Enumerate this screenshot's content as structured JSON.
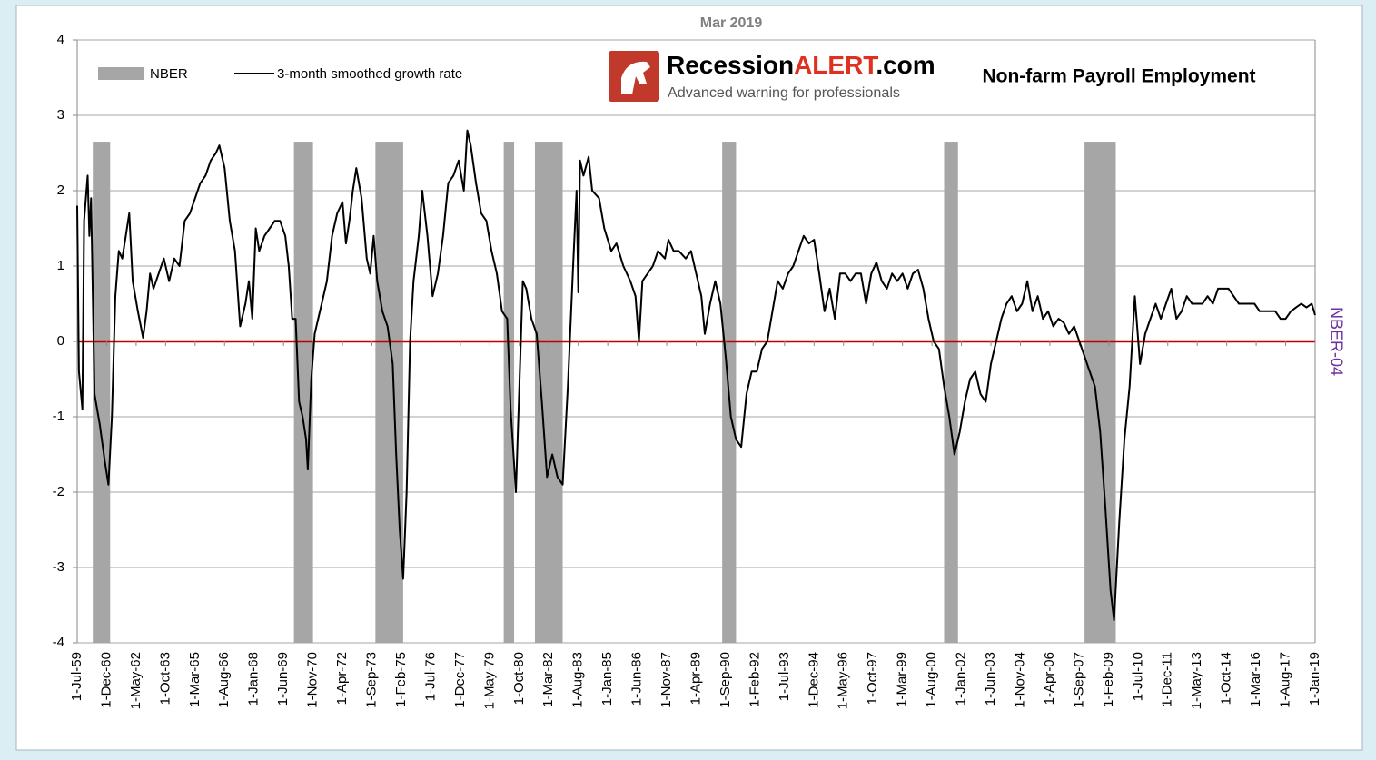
{
  "chart_data": {
    "type": "line",
    "title": "Mar 2019",
    "chart_label": "Non-farm Payroll Employment",
    "y2_label": "NBER-04",
    "logo": {
      "part1": "Recession",
      "part2": "ALERT",
      "part3": ".com",
      "tagline": "Advanced warning for professionals"
    },
    "xlim": [
      "1-Jul-59",
      "1-Jan-19"
    ],
    "xticks": [
      "1-Jul-59",
      "1-Dec-60",
      "1-May-62",
      "1-Oct-63",
      "1-Mar-65",
      "1-Aug-66",
      "1-Jan-68",
      "1-Jun-69",
      "1-Nov-70",
      "1-Apr-72",
      "1-Sep-73",
      "1-Feb-75",
      "1-Jul-76",
      "1-Dec-77",
      "1-May-79",
      "1-Oct-80",
      "1-Mar-82",
      "1-Aug-83",
      "1-Jan-85",
      "1-Jun-86",
      "1-Nov-87",
      "1-Apr-89",
      "1-Sep-90",
      "1-Feb-92",
      "1-Jul-93",
      "1-Dec-94",
      "1-May-96",
      "1-Oct-97",
      "1-Mar-99",
      "1-Aug-00",
      "1-Jan-02",
      "1-Jun-03",
      "1-Nov-04",
      "1-Apr-06",
      "1-Sep-07",
      "1-Feb-09",
      "1-Jul-10",
      "1-Dec-11",
      "1-May-13",
      "1-Oct-14",
      "1-Mar-16",
      "1-Aug-17",
      "1-Jan-19"
    ],
    "ylim": [
      -4,
      4
    ],
    "yticks": [
      -4,
      -3,
      -2,
      -1,
      0,
      1,
      2,
      3,
      4
    ],
    "grid": true,
    "zero_line": {
      "value": 0,
      "color": "#c00000"
    },
    "nber": {
      "name": "NBER",
      "color": "#a6a6a6",
      "value": 2.65,
      "periods": [
        [
          "1-Apr-60",
          "1-Feb-61"
        ],
        [
          "1-Dec-69",
          "1-Nov-70"
        ],
        [
          "1-Nov-73",
          "1-Mar-75"
        ],
        [
          "1-Jan-80",
          "1-Jul-80"
        ],
        [
          "1-Jul-81",
          "1-Nov-82"
        ],
        [
          "1-Jul-90",
          "1-Mar-91"
        ],
        [
          "1-Mar-01",
          "1-Nov-01"
        ],
        [
          "1-Dec-07",
          "1-Jun-09"
        ]
      ]
    },
    "x": [
      "1-Jul-59",
      "1-Aug-59",
      "1-Oct-59",
      "1-Nov-59",
      "1-Jan-60",
      "1-Feb-60",
      "1-Mar-60",
      "1-May-60",
      "1-Aug-60",
      "1-Nov-60",
      "1-Jan-61",
      "1-Mar-61",
      "1-May-61",
      "1-Jul-61",
      "1-Sep-61",
      "1-Nov-61",
      "1-Jan-62",
      "1-Mar-62",
      "1-Jun-62",
      "1-Sep-62",
      "1-Nov-62",
      "1-Jan-63",
      "1-Mar-63",
      "1-Jun-63",
      "1-Sep-63",
      "1-Dec-63",
      "1-Mar-64",
      "1-Jun-64",
      "1-Sep-64",
      "1-Dec-64",
      "1-Mar-65",
      "1-Jun-65",
      "1-Sep-65",
      "1-Dec-65",
      "1-Mar-66",
      "1-May-66",
      "1-Aug-66",
      "1-Nov-66",
      "1-Feb-67",
      "1-May-67",
      "1-Aug-67",
      "1-Oct-67",
      "1-Dec-67",
      "1-Feb-68",
      "1-Apr-68",
      "1-Jul-68",
      "1-Oct-68",
      "1-Jan-69",
      "1-Apr-69",
      "1-Jul-69",
      "1-Sep-69",
      "1-Nov-69",
      "1-Jan-70",
      "1-Mar-70",
      "1-May-70",
      "1-Jul-70",
      "1-Aug-70",
      "1-Oct-70",
      "1-Dec-70",
      "1-Feb-71",
      "1-Apr-71",
      "1-Jul-71",
      "1-Oct-71",
      "1-Jan-72",
      "1-Apr-72",
      "1-Jun-72",
      "1-Aug-72",
      "1-Oct-72",
      "1-Dec-72",
      "1-Mar-73",
      "1-Jun-73",
      "1-Aug-73",
      "1-Oct-73",
      "1-Dec-73",
      "1-Mar-74",
      "1-Jun-74",
      "1-Sep-74",
      "1-Nov-74",
      "1-Jan-75",
      "1-Mar-75",
      "1-May-75",
      "1-Jul-75",
      "1-Sep-75",
      "1-Dec-75",
      "1-Feb-76",
      "1-May-76",
      "1-Aug-76",
      "1-Nov-76",
      "1-Feb-77",
      "1-May-77",
      "1-Aug-77",
      "1-Nov-77",
      "1-Feb-78",
      "1-Apr-78",
      "1-Jun-78",
      "1-Sep-78",
      "1-Dec-78",
      "1-Mar-79",
      "1-Jun-79",
      "1-Sep-79",
      "1-Dec-79",
      "1-Mar-80",
      "1-May-80",
      "1-Aug-80",
      "1-Oct-80",
      "1-Dec-80",
      "1-Feb-81",
      "1-May-81",
      "1-Aug-81",
      "1-Nov-81",
      "1-Feb-82",
      "1-May-82",
      "1-Aug-82",
      "1-Nov-82",
      "1-Feb-83",
      "1-May-83",
      "1-Jul-83",
      "1-Aug-83",
      "1-Sep-83",
      "1-Nov-83",
      "1-Feb-84",
      "1-Apr-84",
      "1-Aug-84",
      "1-Nov-84",
      "1-Mar-85",
      "1-Jun-85",
      "1-Oct-85",
      "1-Feb-86",
      "1-May-86",
      "1-Jul-86",
      "1-Sep-86",
      "1-Dec-86",
      "1-Mar-87",
      "1-Jun-87",
      "1-Oct-87",
      "1-Dec-87",
      "1-Mar-88",
      "1-Jun-88",
      "1-Oct-88",
      "1-Jan-89",
      "1-Apr-89",
      "1-Jul-89",
      "1-Sep-89",
      "1-Dec-89",
      "1-Mar-90",
      "1-Jun-90",
      "1-Sep-90",
      "1-Dec-90",
      "1-Mar-91",
      "1-Jun-91",
      "1-Sep-91",
      "1-Dec-91",
      "1-Mar-92",
      "1-Jun-92",
      "1-Sep-92",
      "1-Dec-92",
      "1-Mar-93",
      "1-Jun-93",
      "1-Sep-93",
      "1-Dec-93",
      "1-Mar-94",
      "1-Jun-94",
      "1-Sep-94",
      "1-Dec-94",
      "1-Mar-95",
      "1-Jun-95",
      "1-Sep-95",
      "1-Dec-95",
      "1-Mar-96",
      "1-Jun-96",
      "1-Sep-96",
      "1-Dec-96",
      "1-Mar-97",
      "1-Jun-97",
      "1-Sep-97",
      "1-Dec-97",
      "1-Mar-98",
      "1-Jun-98",
      "1-Sep-98",
      "1-Dec-98",
      "1-Mar-99",
      "1-Jun-99",
      "1-Sep-99",
      "1-Dec-99",
      "1-Mar-00",
      "1-Jun-00",
      "1-Sep-00",
      "1-Dec-00",
      "1-Mar-01",
      "1-Jun-01",
      "1-Sep-01",
      "1-Dec-01",
      "1-Mar-02",
      "1-Jun-02",
      "1-Sep-02",
      "1-Dec-02",
      "1-Mar-03",
      "1-Jun-03",
      "1-Sep-03",
      "1-Dec-03",
      "1-Mar-04",
      "1-Jun-04",
      "1-Sep-04",
      "1-Dec-04",
      "1-Mar-05",
      "1-Jun-05",
      "1-Sep-05",
      "1-Dec-05",
      "1-Mar-06",
      "1-Jun-06",
      "1-Sep-06",
      "1-Dec-06",
      "1-Mar-07",
      "1-Jun-07",
      "1-Sep-07",
      "1-Dec-07",
      "1-Mar-08",
      "1-Jun-08",
      "1-Sep-08",
      "1-Dec-08",
      "1-Mar-09",
      "1-May-09",
      "1-Aug-09",
      "1-Nov-09",
      "1-Feb-10",
      "1-May-10",
      "1-Aug-10",
      "1-Nov-10",
      "1-Feb-11",
      "1-May-11",
      "1-Aug-11",
      "1-Nov-11",
      "1-Feb-12",
      "1-May-12",
      "1-Aug-12",
      "1-Nov-12",
      "1-Feb-13",
      "1-May-13",
      "1-Aug-13",
      "1-Nov-13",
      "1-Feb-14",
      "1-May-14",
      "1-Aug-14",
      "1-Nov-14",
      "1-Feb-15",
      "1-May-15",
      "1-Aug-15",
      "1-Nov-15",
      "1-Feb-16",
      "1-May-16",
      "1-Aug-16",
      "1-Nov-16",
      "1-Feb-17",
      "1-May-17",
      "1-Aug-17",
      "1-Nov-17",
      "1-Feb-18",
      "1-May-18",
      "1-Aug-18",
      "1-Nov-18",
      "1-Jan-19"
    ],
    "series": [
      {
        "name": "3-month smoothed growth rate",
        "color": "#000000",
        "values": [
          1.8,
          -0.4,
          -0.9,
          1.6,
          2.2,
          1.4,
          1.9,
          -0.7,
          -1.1,
          -1.6,
          -1.9,
          -1.0,
          0.6,
          1.2,
          1.1,
          1.4,
          1.7,
          0.8,
          0.4,
          0.05,
          0.4,
          0.9,
          0.7,
          0.9,
          1.1,
          0.8,
          1.1,
          1.0,
          1.6,
          1.7,
          1.9,
          2.1,
          2.2,
          2.4,
          2.5,
          2.6,
          2.3,
          1.6,
          1.2,
          0.2,
          0.5,
          0.8,
          0.3,
          1.5,
          1.2,
          1.4,
          1.5,
          1.6,
          1.6,
          1.4,
          1.0,
          0.3,
          0.3,
          -0.8,
          -1.0,
          -1.3,
          -1.7,
          -0.5,
          0.1,
          0.3,
          0.5,
          0.8,
          1.4,
          1.7,
          1.85,
          1.3,
          1.6,
          2.0,
          2.3,
          1.9,
          1.1,
          0.9,
          1.4,
          0.8,
          0.4,
          0.2,
          -0.3,
          -1.5,
          -2.5,
          -3.15,
          -2.0,
          0.0,
          0.8,
          1.4,
          2.0,
          1.4,
          0.6,
          0.9,
          1.4,
          2.1,
          2.2,
          2.4,
          2.0,
          2.8,
          2.6,
          2.1,
          1.7,
          1.6,
          1.2,
          0.9,
          0.4,
          0.3,
          -0.9,
          -2.0,
          -0.6,
          0.8,
          0.7,
          0.3,
          0.1,
          -0.8,
          -1.8,
          -1.5,
          -1.8,
          -1.9,
          -0.6,
          1.0,
          2.0,
          0.65,
          2.4,
          2.2,
          2.45,
          2.0,
          1.9,
          1.5,
          1.2,
          1.3,
          1.0,
          0.8,
          0.6,
          0.0,
          0.8,
          0.9,
          1.0,
          1.2,
          1.1,
          1.35,
          1.2,
          1.2,
          1.1,
          1.2,
          0.9,
          0.6,
          0.1,
          0.5,
          0.8,
          0.5,
          -0.2,
          -1.0,
          -1.3,
          -1.4,
          -0.7,
          -0.4,
          -0.4,
          -0.1,
          0.0,
          0.4,
          0.8,
          0.7,
          0.9,
          1.0,
          1.2,
          1.4,
          1.3,
          1.35,
          0.9,
          0.4,
          0.7,
          0.3,
          0.9,
          0.9,
          0.8,
          0.9,
          0.9,
          0.5,
          0.9,
          1.05,
          0.8,
          0.7,
          0.9,
          0.8,
          0.9,
          0.7,
          0.9,
          0.95,
          0.7,
          0.3,
          0.0,
          -0.1,
          -0.6,
          -1.0,
          -1.5,
          -1.2,
          -0.8,
          -0.5,
          -0.4,
          -0.7,
          -0.8,
          -0.3,
          0.0,
          0.3,
          0.5,
          0.6,
          0.4,
          0.5,
          0.8,
          0.4,
          0.6,
          0.3,
          0.4,
          0.2,
          0.3,
          0.25,
          0.1,
          0.2,
          0.0,
          -0.2,
          -0.4,
          -0.6,
          -1.2,
          -2.2,
          -3.3,
          -3.7,
          -2.4,
          -1.3,
          -0.6,
          0.6,
          -0.3,
          0.1,
          0.3,
          0.5,
          0.3,
          0.5,
          0.7,
          0.3,
          0.4,
          0.6,
          0.5,
          0.5,
          0.5,
          0.6,
          0.5,
          0.7,
          0.7,
          0.7,
          0.6,
          0.5,
          0.5,
          0.5,
          0.5,
          0.4,
          0.4,
          0.4,
          0.4,
          0.3,
          0.3,
          0.4,
          0.45,
          0.5,
          0.45,
          0.5,
          0.35
        ]
      }
    ]
  }
}
